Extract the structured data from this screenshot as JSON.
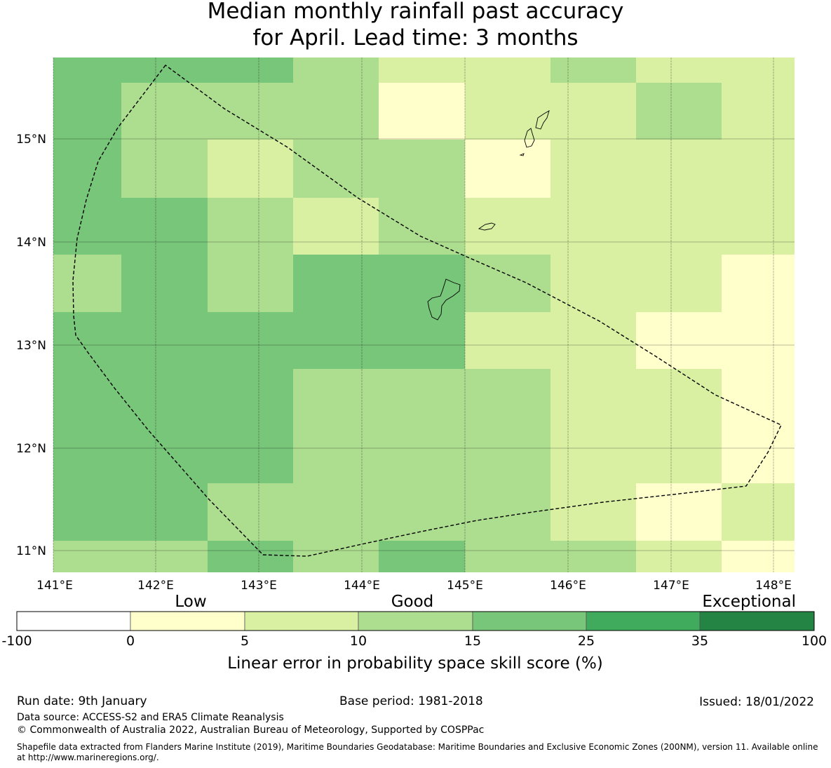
{
  "title": {
    "line1": "Median monthly rainfall past accuracy",
    "line2": "for April. Lead time: 3 months"
  },
  "map": {
    "lon_labels": [
      "141°E",
      "142°E",
      "143°E",
      "144°E",
      "145°E",
      "146°E",
      "147°E",
      "148°E"
    ],
    "lat_labels": [
      "15°N",
      "14°N",
      "13°N",
      "12°N",
      "11°N"
    ],
    "grid": {
      "columns": 9,
      "rows": 9,
      "values": [
        [
          15,
          15,
          15,
          10,
          5,
          5,
          10,
          5,
          5
        ],
        [
          15,
          10,
          10,
          10,
          0,
          5,
          5,
          10,
          5
        ],
        [
          15,
          10,
          5,
          10,
          10,
          0,
          5,
          5,
          5
        ],
        [
          15,
          15,
          10,
          5,
          10,
          5,
          5,
          5,
          5
        ],
        [
          10,
          15,
          10,
          15,
          15,
          10,
          5,
          5,
          0
        ],
        [
          15,
          15,
          15,
          15,
          15,
          5,
          5,
          0,
          0
        ],
        [
          15,
          15,
          15,
          10,
          10,
          10,
          5,
          5,
          0
        ],
        [
          15,
          15,
          10,
          10,
          10,
          10,
          5,
          0,
          5
        ],
        [
          10,
          10,
          15,
          10,
          15,
          10,
          10,
          5,
          0
        ]
      ]
    }
  },
  "legend": {
    "categories": [
      "Low",
      "Good",
      "Exceptional"
    ],
    "tick_labels": [
      "-100",
      "0",
      "5",
      "10",
      "15",
      "25",
      "35",
      "100"
    ],
    "colors": [
      "#ffffff",
      "#ffffcc",
      "#d9f0a3",
      "#addd8e",
      "#78c679",
      "#41ab5d",
      "#238443"
    ],
    "axis_label": "Linear error in probability space skill score (%)"
  },
  "footer": {
    "run_date": "Run date: 9th January",
    "base_period": "Base period: 1981-2018",
    "issued": "Issued: 18/01/2022",
    "data_source": "Data source: ACCESS-S2 and ERA5 Climate Reanalysis",
    "copyright": "© Commonwealth of Australia 2022, Australian Bureau of Meteorology, Supported by COSPPac",
    "shapefile": "Shapefile data extracted from Flanders Marine Institute (2019), Maritime Boundaries Geodatabase: Maritime Boundaries and Exclusive Economic Zones (200NM), version 11. Available online at http://www.marineregions.org/."
  }
}
